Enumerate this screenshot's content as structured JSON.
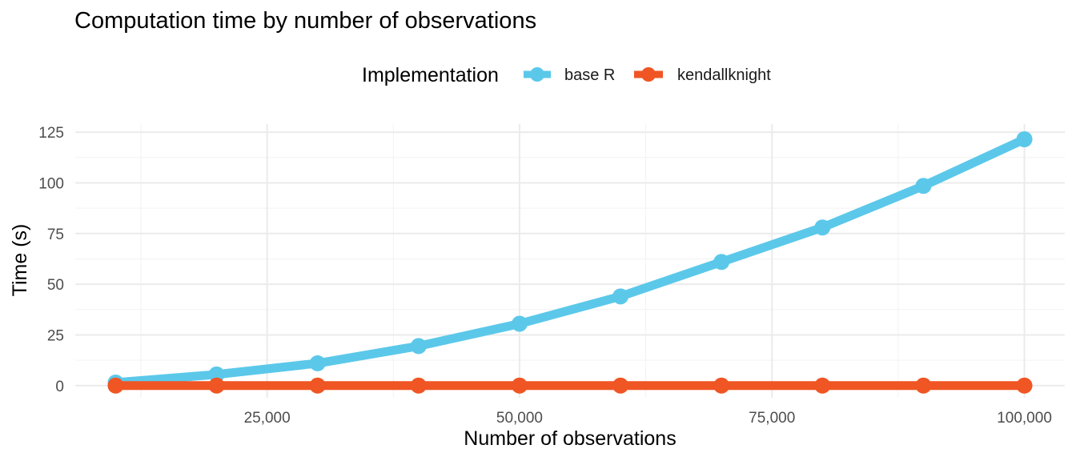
{
  "chart_data": {
    "type": "line",
    "title": "Computation time by number of observations",
    "xlabel": "Number of observations",
    "ylabel": "Time (s)",
    "legend_title": "Implementation",
    "legend_position": "top",
    "grid": true,
    "xlim": [
      6000,
      104000
    ],
    "ylim": [
      -6,
      129
    ],
    "x_ticks": [
      25000,
      50000,
      75000,
      100000
    ],
    "x_tick_labels": [
      "25,000",
      "50,000",
      "75,000",
      "100,000"
    ],
    "y_ticks": [
      0,
      25,
      50,
      75,
      100,
      125
    ],
    "y_tick_labels": [
      "0",
      "25",
      "50",
      "75",
      "100",
      "125"
    ],
    "x": [
      10000,
      20000,
      30000,
      40000,
      50000,
      60000,
      70000,
      80000,
      90000,
      100000
    ],
    "series": [
      {
        "name": "base R",
        "color": "#5BC8EA",
        "values": [
          1.5,
          5.5,
          11,
          19.5,
          30.5,
          44,
          61,
          78,
          98.5,
          121.5
        ]
      },
      {
        "name": "kendallknight",
        "color": "#F05524",
        "values": [
          0,
          0,
          0,
          0,
          0,
          0,
          0,
          0,
          0,
          0
        ]
      }
    ]
  }
}
